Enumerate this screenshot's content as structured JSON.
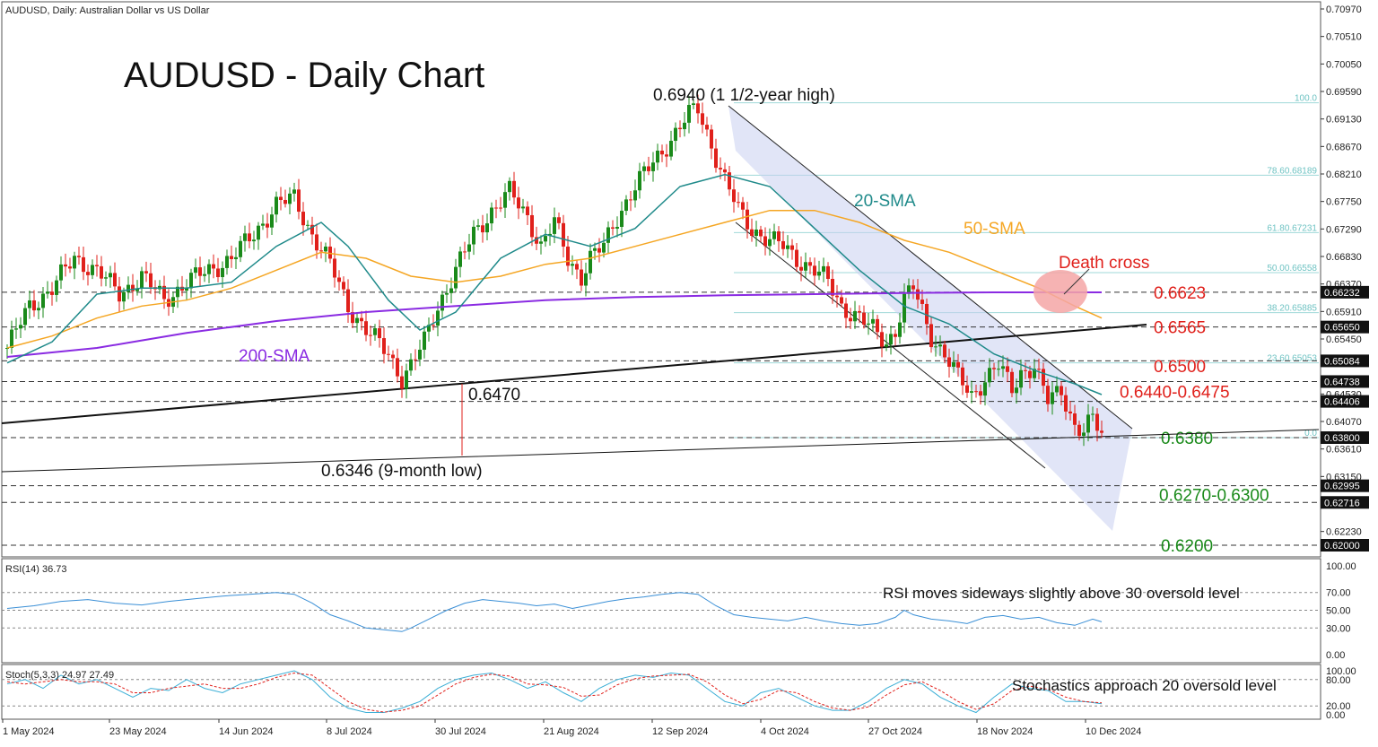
{
  "header": {
    "symbol_line": "AUDUSD, Daily:  Australian Dollar vs US Dollar",
    "big_title": "AUDUSD - Daily Chart"
  },
  "colors": {
    "up_candle": "#1a8a1a",
    "down_candle": "#e0201b",
    "sma20": "#1f8a8a",
    "sma50": "#f5a623",
    "sma200": "#8a2be2",
    "rsi_line": "#3a8fd6",
    "stoch_main": "#3aaed6",
    "stoch_signal": "#e0201b",
    "channel_fill": "#c9cff0",
    "death_cross": "#f4a6a6",
    "level_red": "#e0201b",
    "level_green": "#1a8a1a",
    "fib_text": "#6fc3c3"
  },
  "annotations": {
    "high": "0.6940 (1 1/2-year high)",
    "low": "0.6346 (9-month low)",
    "support_0470": "0.6470",
    "sma20": "20-SMA",
    "sma50": "50-SMA",
    "sma200": "200-SMA",
    "death_cross": "Death cross",
    "rsi_note": "RSI moves sideways slightly above 30 oversold level",
    "stoch_note": "Stochastics approach 20 oversold level"
  },
  "key_levels": [
    {
      "label": "0.6623",
      "value": 0.6623,
      "color": "red"
    },
    {
      "label": "0.6565",
      "value": 0.6565,
      "color": "red"
    },
    {
      "label": "0.6500",
      "value": 0.65,
      "color": "red"
    },
    {
      "label": "0.6440-0.6475",
      "value": 0.6457,
      "color": "red"
    },
    {
      "label": "0.6380",
      "value": 0.638,
      "color": "green"
    },
    {
      "label": "0.6270-0.6300",
      "value": 0.6285,
      "color": "green"
    },
    {
      "label": "0.6200",
      "value": 0.62,
      "color": "green"
    }
  ],
  "fib_levels": [
    {
      "label": "100.0",
      "value": 0.694
    },
    {
      "label": "78.60.68189",
      "value": 0.6819
    },
    {
      "label": "61.80.67231",
      "value": 0.6723
    },
    {
      "label": "50.00.66558",
      "value": 0.6656
    },
    {
      "label": "38.20.65885",
      "value": 0.6589
    },
    {
      "label": "23.60.65053",
      "value": 0.6505
    },
    {
      "label": "0.0",
      "value": 0.638
    }
  ],
  "price_axis": {
    "ticks": [
      "0.70970",
      "0.70510",
      "0.70050",
      "0.69590",
      "0.69130",
      "0.68670",
      "0.68210",
      "0.67750",
      "0.67290",
      "0.66830",
      "0.66370",
      "0.65910",
      "0.65450",
      "0.64530",
      "0.64070",
      "0.63610",
      "0.63150",
      "0.62690",
      "0.62230"
    ],
    "tick_values": [
      0.7097,
      0.7051,
      0.7005,
      0.6959,
      0.6913,
      0.6867,
      0.6821,
      0.6775,
      0.6729,
      0.6683,
      0.6637,
      0.6591,
      0.6545,
      0.6453,
      0.6407,
      0.6361,
      0.6315,
      0.6269,
      0.6223
    ],
    "boxed": [
      "0.66232",
      "0.65650",
      "0.65084",
      "0.64738",
      "0.64406",
      "0.63800",
      "0.62995",
      "0.62716",
      "0.62000"
    ],
    "boxed_values": [
      0.66232,
      0.6565,
      0.65084,
      0.64738,
      0.64406,
      0.638,
      0.62995,
      0.62716,
      0.62
    ],
    "range": [
      0.62,
      0.71
    ]
  },
  "rsi_panel": {
    "label": "RSI(14) 36.73",
    "ticks": [
      "100.00",
      "70.00",
      "50.00",
      "30.00",
      "0.00"
    ],
    "tick_values": [
      100,
      70,
      50,
      30,
      0
    ]
  },
  "stoch_panel": {
    "label": "Stoch(5,3,3) 24.97 27.49",
    "ticks": [
      "100.00",
      "80.00",
      "20.00",
      "0.00"
    ],
    "tick_values": [
      100,
      80,
      20,
      0
    ]
  },
  "date_axis": [
    "1 May 2024",
    "23 May 2024",
    "14 Jun 2024",
    "8 Jul 2024",
    "30 Jul 2024",
    "21 Aug 2024",
    "12 Sep 2024",
    "4 Oct 2024",
    "27 Oct 2024",
    "18 Nov 2024",
    "10 Dec 2024"
  ],
  "chart_data": {
    "type": "line",
    "title": "AUDUSD - Daily Chart",
    "price_anchors": [
      [
        0,
        0.653
      ],
      [
        5,
        0.66
      ],
      [
        10,
        0.663
      ],
      [
        15,
        0.668
      ],
      [
        20,
        0.666
      ],
      [
        25,
        0.662
      ],
      [
        30,
        0.665
      ],
      [
        35,
        0.661
      ],
      [
        40,
        0.664
      ],
      [
        45,
        0.666
      ],
      [
        50,
        0.668
      ],
      [
        55,
        0.672
      ],
      [
        60,
        0.677
      ],
      [
        64,
        0.678
      ],
      [
        68,
        0.672
      ],
      [
        72,
        0.667
      ],
      [
        76,
        0.66
      ],
      [
        80,
        0.656
      ],
      [
        85,
        0.652
      ],
      [
        88,
        0.648
      ],
      [
        90,
        0.65
      ],
      [
        93,
        0.654
      ],
      [
        96,
        0.66
      ],
      [
        100,
        0.666
      ],
      [
        104,
        0.672
      ],
      [
        108,
        0.676
      ],
      [
        112,
        0.679
      ],
      [
        116,
        0.675
      ],
      [
        119,
        0.67
      ],
      [
        122,
        0.674
      ],
      [
        125,
        0.668
      ],
      [
        128,
        0.665
      ],
      [
        130,
        0.668
      ],
      [
        133,
        0.67
      ],
      [
        136,
        0.675
      ],
      [
        140,
        0.68
      ],
      [
        143,
        0.683
      ],
      [
        146,
        0.686
      ],
      [
        149,
        0.689
      ],
      [
        152,
        0.692
      ],
      [
        154,
        0.693
      ],
      [
        157,
        0.687
      ],
      [
        160,
        0.681
      ],
      [
        163,
        0.676
      ],
      [
        166,
        0.673
      ],
      [
        170,
        0.671
      ],
      [
        173,
        0.67
      ],
      [
        176,
        0.668
      ],
      [
        180,
        0.666
      ],
      [
        183,
        0.664
      ],
      [
        186,
        0.66
      ],
      [
        190,
        0.658
      ],
      [
        193,
        0.656
      ],
      [
        196,
        0.654
      ],
      [
        198,
        0.656
      ],
      [
        200,
        0.661
      ],
      [
        202,
        0.663
      ],
      [
        204,
        0.659
      ],
      [
        206,
        0.655
      ],
      [
        209,
        0.652
      ],
      [
        212,
        0.648
      ],
      [
        215,
        0.645
      ],
      [
        218,
        0.648
      ],
      [
        221,
        0.65
      ],
      [
        224,
        0.646
      ],
      [
        226,
        0.649
      ],
      [
        229,
        0.65
      ],
      [
        232,
        0.644
      ],
      [
        235,
        0.646
      ],
      [
        238,
        0.64
      ],
      [
        240,
        0.639
      ],
      [
        242,
        0.641
      ],
      [
        244,
        0.6385
      ]
    ],
    "sma20": [
      [
        0,
        0.6505
      ],
      [
        10,
        0.654
      ],
      [
        20,
        0.662
      ],
      [
        30,
        0.663
      ],
      [
        40,
        0.663
      ],
      [
        50,
        0.664
      ],
      [
        60,
        0.67
      ],
      [
        70,
        0.674
      ],
      [
        76,
        0.67
      ],
      [
        85,
        0.661
      ],
      [
        92,
        0.656
      ],
      [
        100,
        0.659
      ],
      [
        110,
        0.668
      ],
      [
        120,
        0.672
      ],
      [
        130,
        0.67
      ],
      [
        140,
        0.673
      ],
      [
        150,
        0.68
      ],
      [
        160,
        0.682
      ],
      [
        170,
        0.68
      ],
      [
        180,
        0.673
      ],
      [
        190,
        0.666
      ],
      [
        200,
        0.66
      ],
      [
        210,
        0.657
      ],
      [
        220,
        0.652
      ],
      [
        230,
        0.649
      ],
      [
        238,
        0.647
      ],
      [
        244,
        0.6452
      ]
    ],
    "sma50": [
      [
        0,
        0.653
      ],
      [
        10,
        0.655
      ],
      [
        20,
        0.658
      ],
      [
        30,
        0.66
      ],
      [
        40,
        0.661
      ],
      [
        50,
        0.663
      ],
      [
        60,
        0.666
      ],
      [
        70,
        0.669
      ],
      [
        80,
        0.668
      ],
      [
        90,
        0.665
      ],
      [
        100,
        0.664
      ],
      [
        110,
        0.665
      ],
      [
        120,
        0.667
      ],
      [
        130,
        0.668
      ],
      [
        140,
        0.67
      ],
      [
        150,
        0.672
      ],
      [
        160,
        0.674
      ],
      [
        170,
        0.676
      ],
      [
        180,
        0.676
      ],
      [
        190,
        0.674
      ],
      [
        200,
        0.671
      ],
      [
        210,
        0.669
      ],
      [
        220,
        0.666
      ],
      [
        230,
        0.663
      ],
      [
        238,
        0.66
      ],
      [
        244,
        0.658
      ]
    ],
    "sma200": [
      [
        0,
        0.6515
      ],
      [
        20,
        0.653
      ],
      [
        40,
        0.6555
      ],
      [
        60,
        0.6575
      ],
      [
        80,
        0.659
      ],
      [
        100,
        0.66
      ],
      [
        120,
        0.661
      ],
      [
        140,
        0.6615
      ],
      [
        160,
        0.6618
      ],
      [
        180,
        0.662
      ],
      [
        200,
        0.6622
      ],
      [
        220,
        0.6623
      ],
      [
        244,
        0.6623
      ]
    ],
    "rsi": [
      [
        0,
        52
      ],
      [
        6,
        55
      ],
      [
        12,
        60
      ],
      [
        18,
        62
      ],
      [
        24,
        58
      ],
      [
        30,
        56
      ],
      [
        36,
        60
      ],
      [
        42,
        63
      ],
      [
        48,
        66
      ],
      [
        54,
        68
      ],
      [
        60,
        70
      ],
      [
        64,
        68
      ],
      [
        68,
        58
      ],
      [
        72,
        45
      ],
      [
        76,
        38
      ],
      [
        80,
        30
      ],
      [
        84,
        28
      ],
      [
        88,
        26
      ],
      [
        90,
        30
      ],
      [
        94,
        40
      ],
      [
        98,
        50
      ],
      [
        102,
        58
      ],
      [
        106,
        62
      ],
      [
        110,
        60
      ],
      [
        114,
        58
      ],
      [
        118,
        55
      ],
      [
        122,
        57
      ],
      [
        126,
        52
      ],
      [
        130,
        56
      ],
      [
        134,
        60
      ],
      [
        138,
        63
      ],
      [
        142,
        65
      ],
      [
        146,
        68
      ],
      [
        150,
        70
      ],
      [
        154,
        68
      ],
      [
        158,
        55
      ],
      [
        162,
        45
      ],
      [
        166,
        42
      ],
      [
        170,
        40
      ],
      [
        174,
        38
      ],
      [
        178,
        42
      ],
      [
        182,
        38
      ],
      [
        186,
        35
      ],
      [
        190,
        33
      ],
      [
        194,
        35
      ],
      [
        198,
        42
      ],
      [
        200,
        50
      ],
      [
        202,
        45
      ],
      [
        206,
        40
      ],
      [
        210,
        38
      ],
      [
        214,
        35
      ],
      [
        218,
        42
      ],
      [
        222,
        44
      ],
      [
        226,
        40
      ],
      [
        230,
        42
      ],
      [
        234,
        36
      ],
      [
        238,
        33
      ],
      [
        242,
        40
      ],
      [
        244,
        37
      ]
    ],
    "stoch_k": [
      [
        0,
        70
      ],
      [
        4,
        80
      ],
      [
        8,
        60
      ],
      [
        12,
        90
      ],
      [
        16,
        70
      ],
      [
        20,
        80
      ],
      [
        24,
        60
      ],
      [
        28,
        40
      ],
      [
        32,
        60
      ],
      [
        36,
        55
      ],
      [
        40,
        80
      ],
      [
        44,
        60
      ],
      [
        48,
        50
      ],
      [
        52,
        70
      ],
      [
        56,
        80
      ],
      [
        60,
        90
      ],
      [
        64,
        100
      ],
      [
        68,
        80
      ],
      [
        72,
        40
      ],
      [
        76,
        15
      ],
      [
        80,
        5
      ],
      [
        84,
        5
      ],
      [
        88,
        15
      ],
      [
        92,
        30
      ],
      [
        96,
        60
      ],
      [
        100,
        80
      ],
      [
        104,
        90
      ],
      [
        108,
        95
      ],
      [
        112,
        80
      ],
      [
        116,
        60
      ],
      [
        120,
        75
      ],
      [
        124,
        50
      ],
      [
        128,
        30
      ],
      [
        132,
        60
      ],
      [
        136,
        80
      ],
      [
        140,
        90
      ],
      [
        144,
        85
      ],
      [
        148,
        95
      ],
      [
        152,
        90
      ],
      [
        156,
        60
      ],
      [
        160,
        30
      ],
      [
        164,
        20
      ],
      [
        168,
        50
      ],
      [
        172,
        60
      ],
      [
        176,
        40
      ],
      [
        180,
        20
      ],
      [
        184,
        10
      ],
      [
        188,
        10
      ],
      [
        192,
        30
      ],
      [
        196,
        60
      ],
      [
        200,
        80
      ],
      [
        204,
        70
      ],
      [
        208,
        40
      ],
      [
        212,
        20
      ],
      [
        216,
        5
      ],
      [
        220,
        40
      ],
      [
        224,
        70
      ],
      [
        228,
        60
      ],
      [
        232,
        55
      ],
      [
        236,
        30
      ],
      [
        240,
        30
      ],
      [
        244,
        25
      ]
    ],
    "stoch_d": [
      [
        0,
        75
      ],
      [
        4,
        70
      ],
      [
        8,
        75
      ],
      [
        12,
        80
      ],
      [
        16,
        75
      ],
      [
        20,
        75
      ],
      [
        24,
        70
      ],
      [
        28,
        50
      ],
      [
        32,
        50
      ],
      [
        36,
        60
      ],
      [
        40,
        65
      ],
      [
        44,
        70
      ],
      [
        48,
        60
      ],
      [
        52,
        60
      ],
      [
        56,
        70
      ],
      [
        60,
        85
      ],
      [
        64,
        95
      ],
      [
        68,
        90
      ],
      [
        72,
        60
      ],
      [
        76,
        30
      ],
      [
        80,
        12
      ],
      [
        84,
        6
      ],
      [
        88,
        10
      ],
      [
        92,
        20
      ],
      [
        96,
        45
      ],
      [
        100,
        70
      ],
      [
        104,
        85
      ],
      [
        108,
        92
      ],
      [
        112,
        88
      ],
      [
        116,
        70
      ],
      [
        120,
        68
      ],
      [
        124,
        62
      ],
      [
        128,
        42
      ],
      [
        132,
        45
      ],
      [
        136,
        68
      ],
      [
        140,
        82
      ],
      [
        144,
        88
      ],
      [
        148,
        90
      ],
      [
        152,
        92
      ],
      [
        156,
        75
      ],
      [
        160,
        45
      ],
      [
        164,
        25
      ],
      [
        168,
        35
      ],
      [
        172,
        55
      ],
      [
        176,
        50
      ],
      [
        180,
        30
      ],
      [
        184,
        15
      ],
      [
        188,
        10
      ],
      [
        192,
        18
      ],
      [
        196,
        45
      ],
      [
        200,
        68
      ],
      [
        204,
        75
      ],
      [
        208,
        55
      ],
      [
        212,
        30
      ],
      [
        216,
        12
      ],
      [
        220,
        25
      ],
      [
        224,
        55
      ],
      [
        228,
        65
      ],
      [
        232,
        58
      ],
      [
        236,
        40
      ],
      [
        240,
        30
      ],
      [
        244,
        27
      ]
    ],
    "ylim": [
      0.62,
      0.71
    ]
  }
}
